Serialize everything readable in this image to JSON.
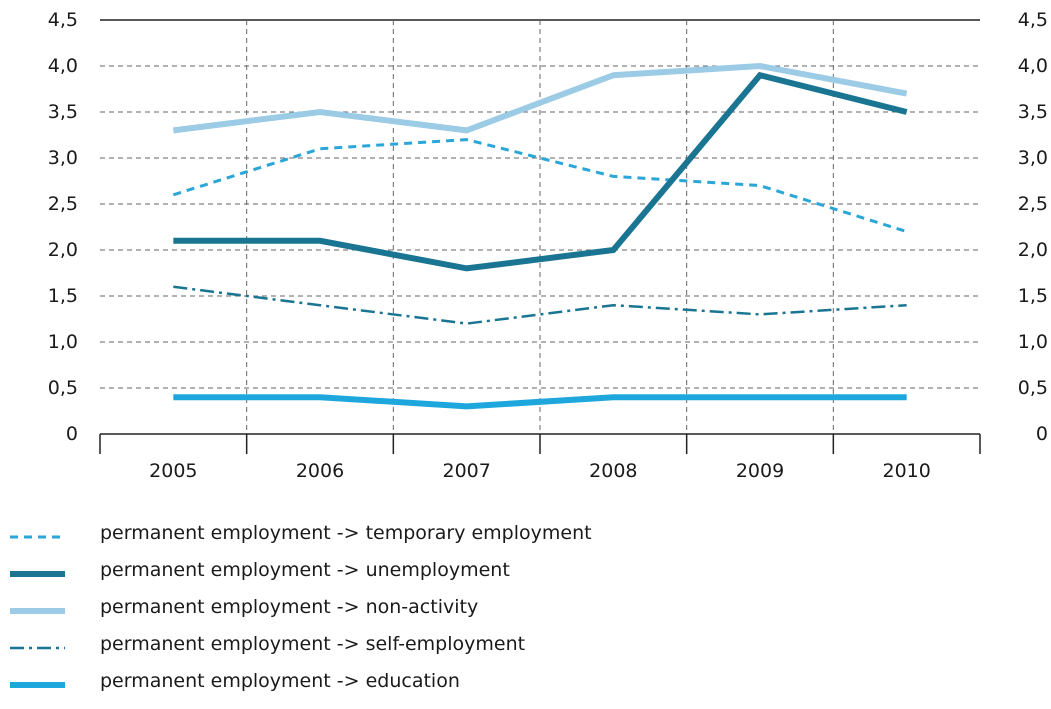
{
  "chart_data": {
    "type": "line",
    "categories": [
      "2005",
      "2006",
      "2007",
      "2008",
      "2009",
      "2010"
    ],
    "ylim": [
      0,
      4.5
    ],
    "yticks": [
      "0",
      "0,5",
      "1,0",
      "1,5",
      "2,0",
      "2,5",
      "3,0",
      "3,5",
      "4,0",
      "4,5"
    ],
    "grid": true,
    "legend_placement": "bottom",
    "series": [
      {
        "name": "permanent employment -> temporary employment",
        "values": [
          2.6,
          3.1,
          3.2,
          2.8,
          2.7,
          2.2
        ],
        "color": "#2aa6d9",
        "style": "dashed"
      },
      {
        "name": "permanent employment -> unemployment",
        "values": [
          2.1,
          2.1,
          1.8,
          2.0,
          3.9,
          3.5
        ],
        "color": "#1a7592",
        "style": "solid-thick"
      },
      {
        "name": "permanent employment -> non-activity",
        "values": [
          3.3,
          3.5,
          3.3,
          3.9,
          4.0,
          3.7
        ],
        "color": "#9ccbe6",
        "style": "solid-thick"
      },
      {
        "name": "permanent employment -> self-employment",
        "values": [
          1.6,
          1.4,
          1.2,
          1.4,
          1.3,
          1.4
        ],
        "color": "#1a7592",
        "style": "dashdot"
      },
      {
        "name": "permanent employment -> education",
        "values": [
          0.4,
          0.4,
          0.3,
          0.4,
          0.4,
          0.4
        ],
        "color": "#1ea7dc",
        "style": "solid-thick"
      }
    ]
  }
}
